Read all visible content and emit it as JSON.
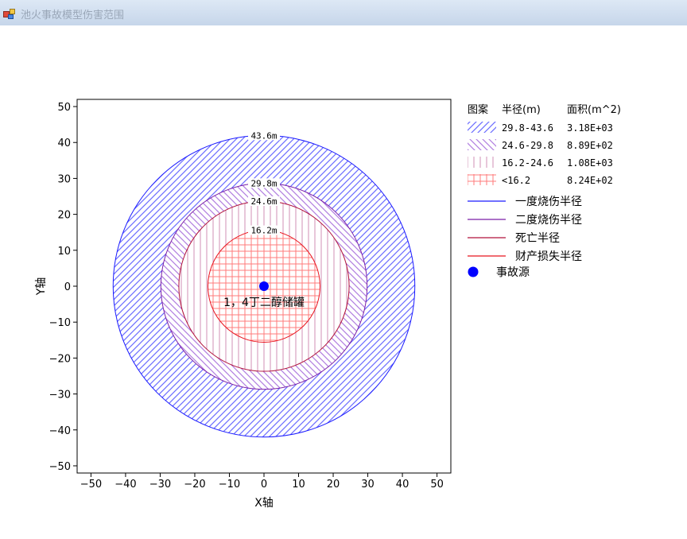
{
  "window": {
    "title": "池火事故模型伤害范围"
  },
  "chart_data": {
    "type": "scatter",
    "xlabel": "X轴",
    "ylabel": "Y轴",
    "xlim": [
      -54,
      54
    ],
    "ylim": [
      -52,
      52
    ],
    "xticks": [
      "−50",
      "−40",
      "−30",
      "−20",
      "−10",
      "0",
      "10",
      "20",
      "30",
      "40",
      "50"
    ],
    "yticks": [
      "50",
      "40",
      "30",
      "20",
      "10",
      "0",
      "−10",
      "−20",
      "−30",
      "−40",
      "−50"
    ],
    "grid": false,
    "legend_position": "right",
    "legend_headers": {
      "pattern": "图案",
      "radius": "半径(m)",
      "area": "面积(m^2)"
    },
    "zones": [
      {
        "range": "29.8-43.6",
        "area": "3.18E+03",
        "pattern": "diag-forward",
        "color": "#6a6cff"
      },
      {
        "range": "24.6-29.8",
        "area": "8.89E+02",
        "pattern": "diag-back",
        "color": "#b07de0"
      },
      {
        "range": "16.2-24.6",
        "area": "1.08E+03",
        "pattern": "vertical",
        "color": "#d08fb5"
      },
      {
        "range": "<16.2",
        "area": "8.24E+02",
        "pattern": "grid",
        "color": "#ff6b6b"
      }
    ],
    "circles": [
      {
        "radius": 43.6,
        "label": "43.6m",
        "name": "一度烧伤半径",
        "color": "#1a1aff"
      },
      {
        "radius": 29.8,
        "label": "29.8m",
        "name": "二度烧伤半径",
        "color": "#7a1fa8"
      },
      {
        "radius": 24.6,
        "label": "24.6m",
        "name": "死亡半径",
        "color": "#b0103a"
      },
      {
        "radius": 16.2,
        "label": "16.2m",
        "name": "财产损失半径",
        "color": "#e8141e"
      }
    ],
    "source": {
      "x": 0,
      "y": 0,
      "name": "事故源",
      "label": "1，4丁二醇储罐",
      "color": "#0000ff"
    }
  }
}
